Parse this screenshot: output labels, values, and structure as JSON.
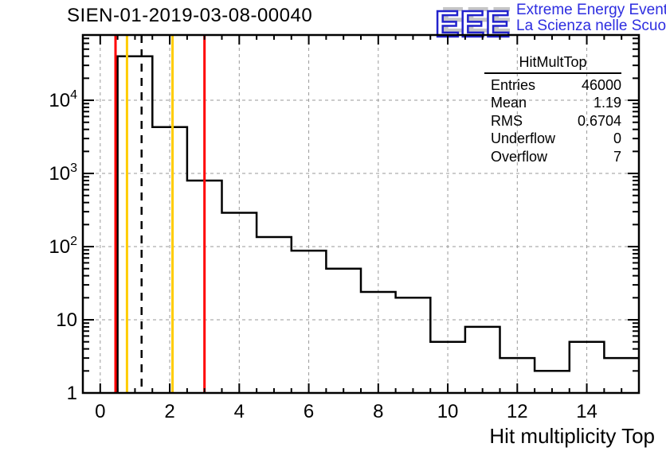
{
  "title": "SIEN-01-2019-03-08-00040",
  "logo": {
    "acronym": "EEE",
    "line1": "Extreme Energy Events",
    "line2": "La Scienza nelle Scuole",
    "blue": "#2222cc",
    "shadow": "#c6c6c6",
    "text_blue": "#2d2de0"
  },
  "stats": {
    "title": "HitMultTop",
    "rows": [
      [
        "Entries",
        "46000"
      ],
      [
        "Mean",
        "1.19"
      ],
      [
        "RMS",
        "0.6704"
      ],
      [
        "Underflow",
        "0"
      ],
      [
        "Overflow",
        "7"
      ]
    ]
  },
  "chart_data": {
    "type": "bar",
    "title": "SIEN-01-2019-03-08-00040",
    "xlabel": "Hit multiplicity Top",
    "ylabel": "",
    "y_scale": "log",
    "x_range": [
      -0.5,
      15.5
    ],
    "y_range": [
      1,
      78000
    ],
    "bin_width": 1,
    "bin_centers": [
      1,
      2,
      3,
      4,
      5,
      6,
      7,
      8,
      9,
      10,
      11,
      12,
      13,
      14,
      15
    ],
    "counts": [
      40000,
      4300,
      800,
      290,
      135,
      88,
      50,
      24,
      20,
      5,
      8,
      3,
      2,
      5,
      3
    ],
    "x_major_ticks": [
      0,
      2,
      4,
      6,
      8,
      10,
      12,
      14
    ],
    "x_minor_step": 0.5,
    "y_major_ticks": [
      1,
      10,
      100,
      1000,
      10000
    ],
    "grid": true,
    "grid_color": "#9a9a9a",
    "hist_color": "#000000",
    "frame_color": "#000000",
    "marker_lines": [
      {
        "x": 0.44,
        "color": "#ff0000",
        "style": "solid"
      },
      {
        "x": 0.77,
        "color": "#ffcc00",
        "style": "solid"
      },
      {
        "x": 1.19,
        "color": "#000000",
        "style": "dashed"
      },
      {
        "x": 2.08,
        "color": "#ffcc00",
        "style": "solid"
      },
      {
        "x": 3.0,
        "color": "#ff0000",
        "style": "solid"
      }
    ]
  }
}
